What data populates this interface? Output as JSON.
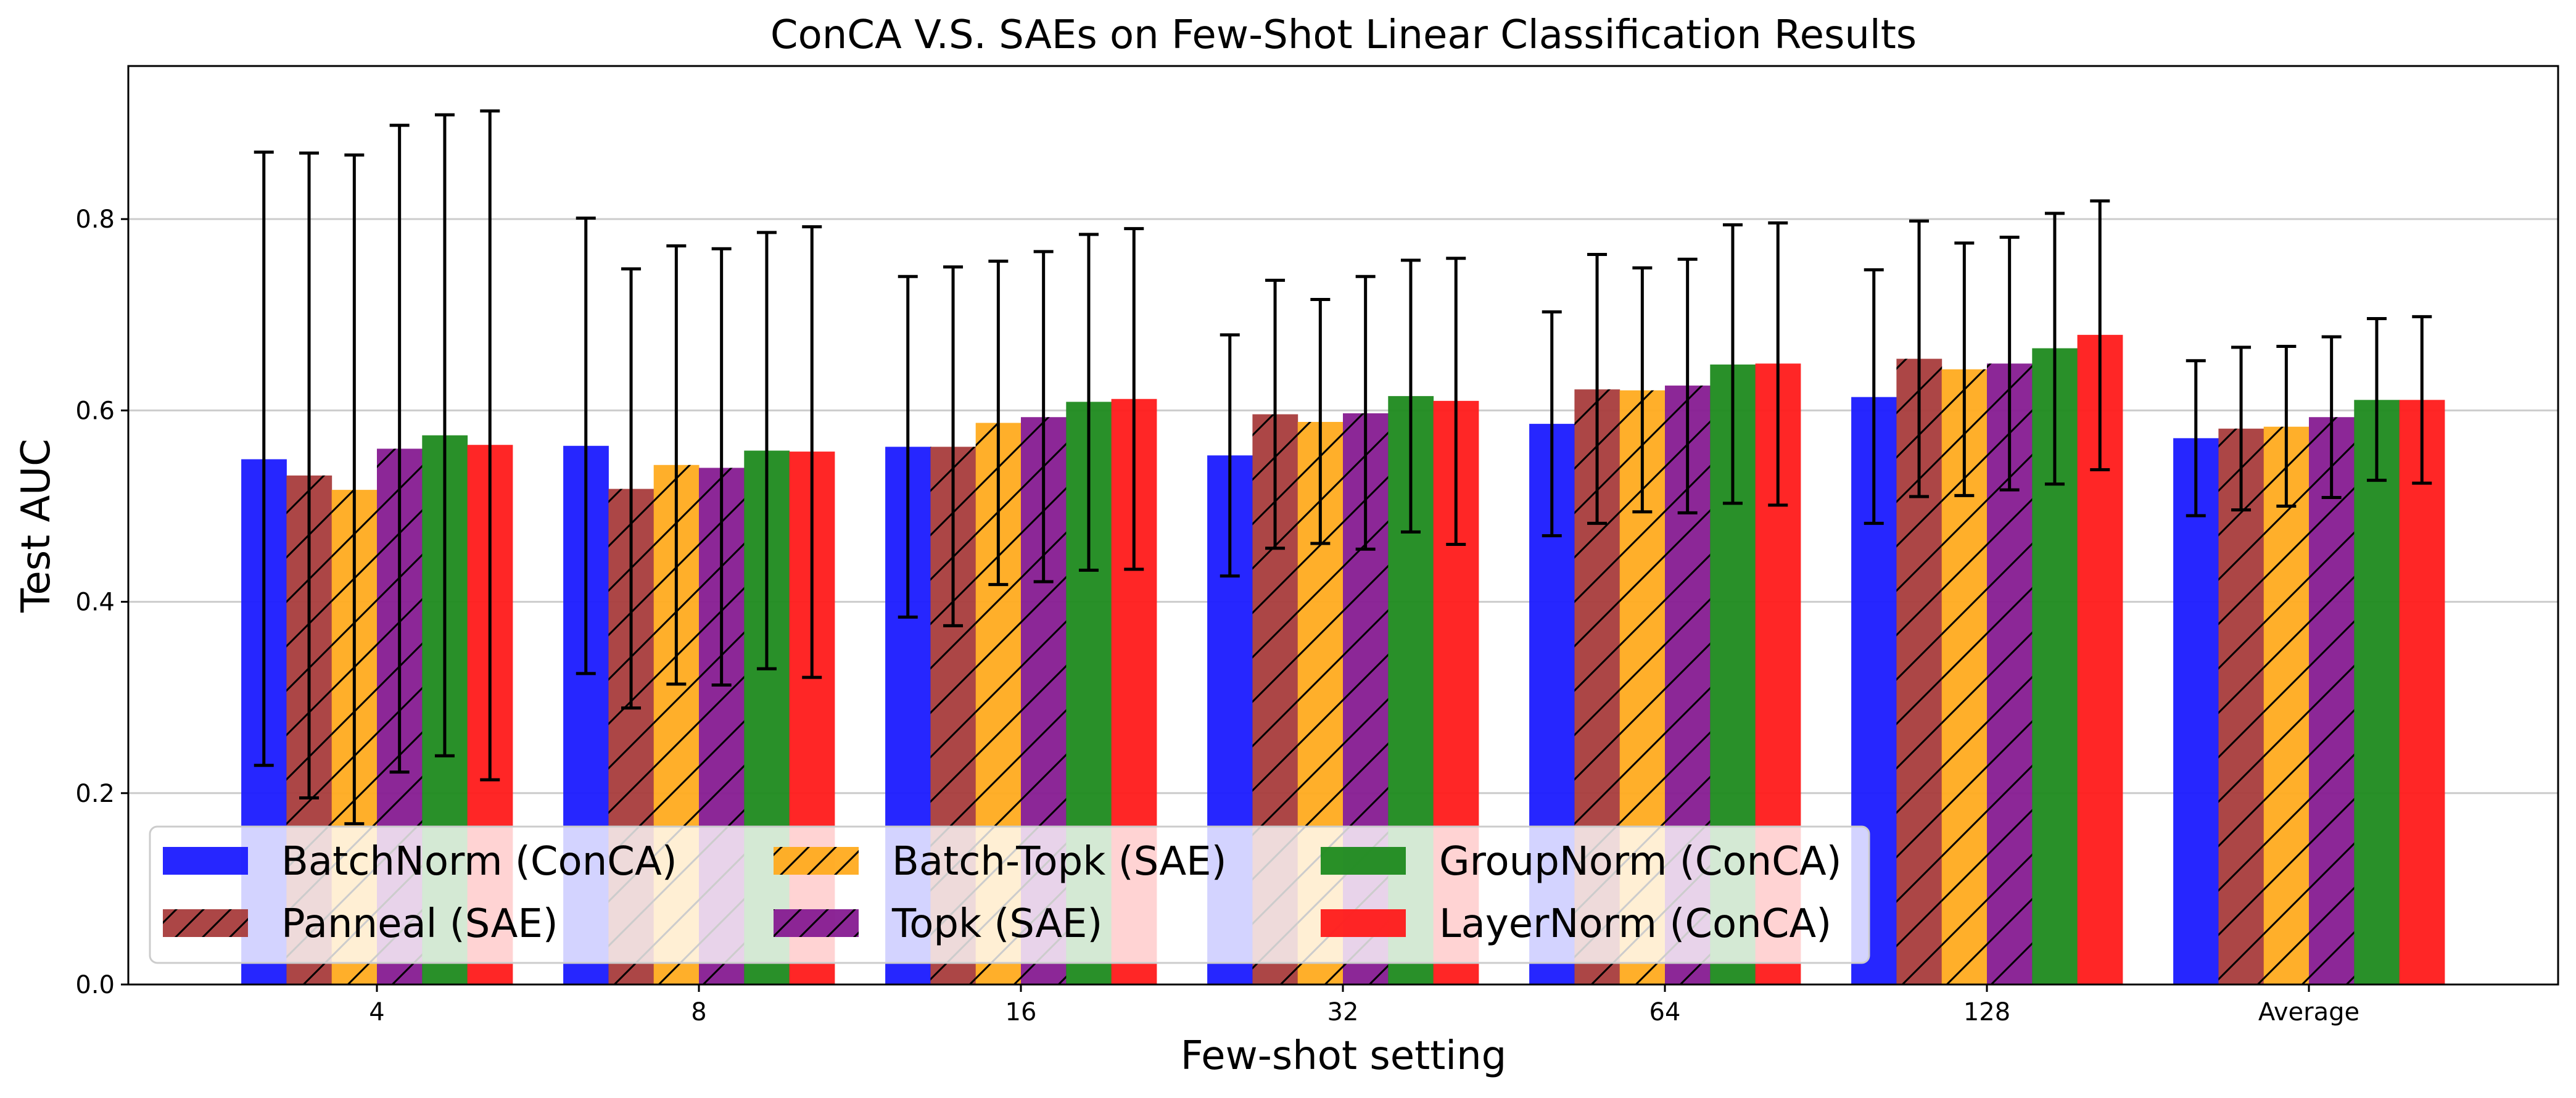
{
  "chart_data": {
    "type": "bar",
    "title": "ConCA V.S. SAEs on Few-Shot Linear Classification Results",
    "xlabel": "Few-shot setting",
    "ylabel": "Test AUC",
    "ylim": [
      0,
      0.96
    ],
    "yticks": [
      0.0,
      0.2,
      0.4,
      0.6,
      0.8
    ],
    "ytick_labels": [
      "0.0",
      "0.2",
      "0.4",
      "0.6",
      "0.8"
    ],
    "grid": "horizontal",
    "legend_position": "lower-left",
    "categories": [
      "4",
      "8",
      "16",
      "32",
      "64",
      "128",
      "Average"
    ],
    "series": [
      {
        "name": "BatchNorm (ConCA)",
        "color": "#1a1aff",
        "hatch": false,
        "values": [
          0.549,
          0.563,
          0.562,
          0.553,
          0.586,
          0.614,
          0.571
        ],
        "error_high": [
          0.87,
          0.801,
          0.74,
          0.679,
          0.703,
          0.747,
          0.652
        ],
        "error_low": [
          0.229,
          0.325,
          0.384,
          0.427,
          0.469,
          0.482,
          0.49
        ]
      },
      {
        "name": "Panneal (SAE)",
        "color": "#a83c3c",
        "hatch": true,
        "values": [
          0.532,
          0.518,
          0.562,
          0.596,
          0.622,
          0.654,
          0.581
        ],
        "error_high": [
          0.869,
          0.748,
          0.75,
          0.736,
          0.763,
          0.798,
          0.666
        ],
        "error_low": [
          0.195,
          0.289,
          0.375,
          0.456,
          0.482,
          0.51,
          0.496
        ]
      },
      {
        "name": "Batch-Topk (SAE)",
        "color": "#ffab1f",
        "hatch": true,
        "values": [
          0.517,
          0.543,
          0.587,
          0.588,
          0.621,
          0.643,
          0.583
        ],
        "error_high": [
          0.867,
          0.772,
          0.756,
          0.716,
          0.749,
          0.775,
          0.667
        ],
        "error_low": [
          0.168,
          0.314,
          0.418,
          0.461,
          0.494,
          0.511,
          0.5
        ]
      },
      {
        "name": "Topk (SAE)",
        "color": "#861b91",
        "hatch": true,
        "values": [
          0.56,
          0.54,
          0.593,
          0.597,
          0.626,
          0.649,
          0.593
        ],
        "error_high": [
          0.898,
          0.769,
          0.766,
          0.74,
          0.758,
          0.781,
          0.677
        ],
        "error_low": [
          0.222,
          0.313,
          0.421,
          0.455,
          0.493,
          0.517,
          0.509
        ]
      },
      {
        "name": "GroupNorm (ConCA)",
        "color": "#1e8a1e",
        "hatch": false,
        "values": [
          0.574,
          0.558,
          0.609,
          0.615,
          0.648,
          0.665,
          0.611
        ],
        "error_high": [
          0.909,
          0.786,
          0.784,
          0.757,
          0.794,
          0.806,
          0.696
        ],
        "error_low": [
          0.239,
          0.33,
          0.433,
          0.473,
          0.503,
          0.523,
          0.527
        ]
      },
      {
        "name": "LayerNorm (ConCA)",
        "color": "#ff1a1a",
        "hatch": false,
        "values": [
          0.564,
          0.557,
          0.612,
          0.61,
          0.649,
          0.679,
          0.611
        ],
        "error_high": [
          0.913,
          0.792,
          0.79,
          0.759,
          0.796,
          0.819,
          0.698
        ],
        "error_low": [
          0.214,
          0.321,
          0.434,
          0.46,
          0.501,
          0.538,
          0.524
        ]
      }
    ]
  }
}
